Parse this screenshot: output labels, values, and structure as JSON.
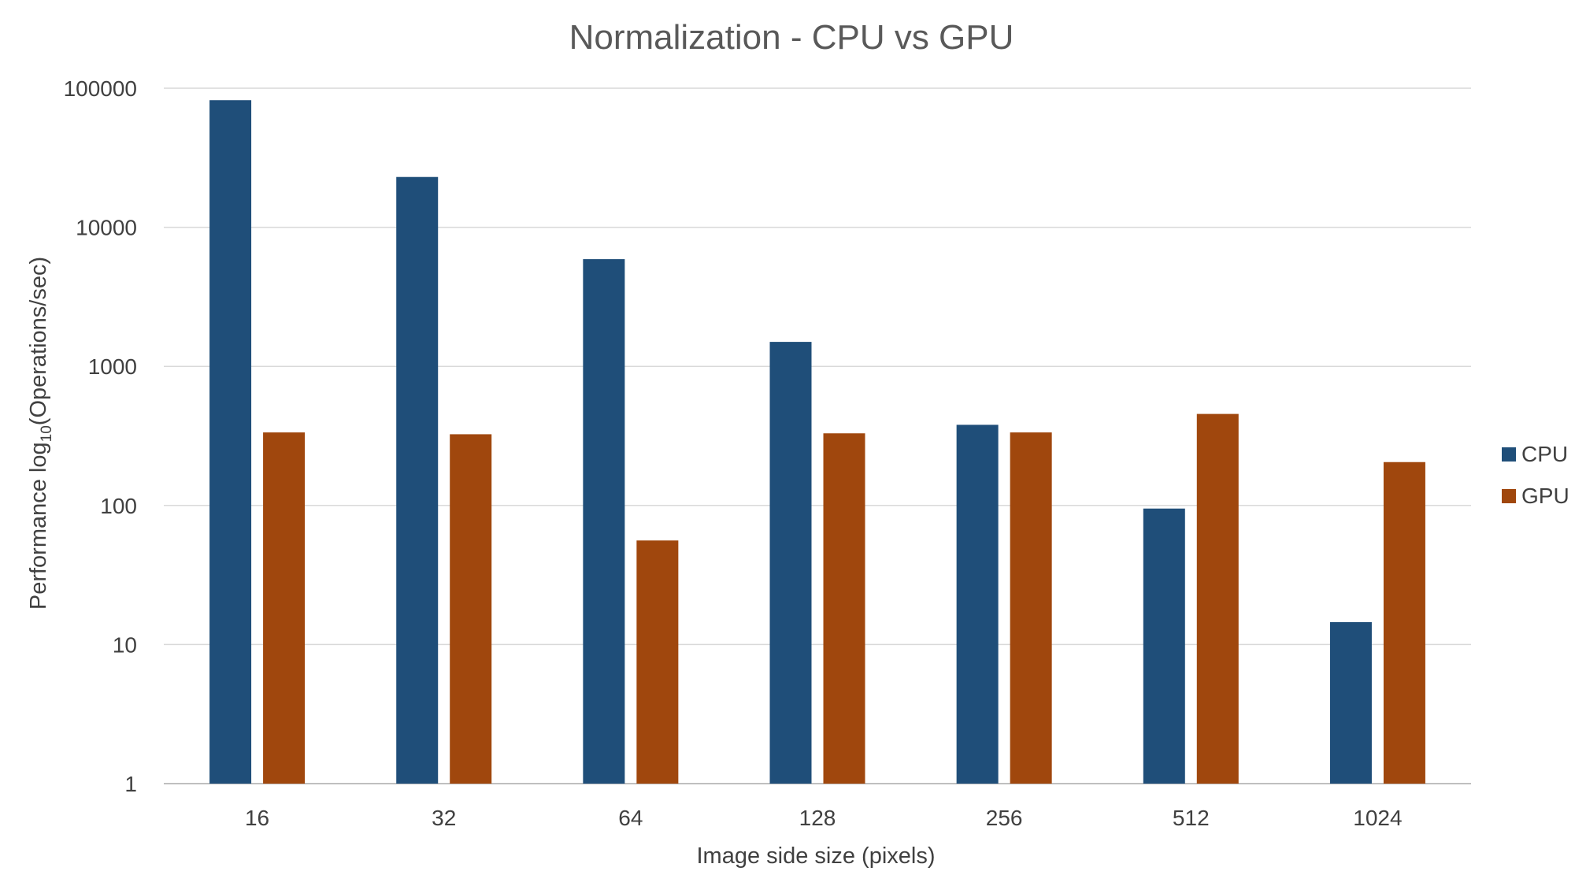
{
  "chart_data": {
    "type": "bar",
    "title": "Normalization  - CPU vs GPU",
    "xlabel": "Image side size (pixels)",
    "ylabel_main": "Performance log",
    "ylabel_sub": "10",
    "ylabel_tail": "(Operations/sec)",
    "y_scale": "log",
    "ylim": [
      1,
      100000
    ],
    "y_ticks": [
      "1",
      "10",
      "100",
      "1000",
      "10000",
      "100000"
    ],
    "categories": [
      "16",
      "32",
      "64",
      "128",
      "256",
      "512",
      "1024"
    ],
    "series": [
      {
        "name": "CPU",
        "color": "#1f4e79",
        "values": [
          82000,
          23000,
          5900,
          1500,
          380,
          95,
          14.5
        ]
      },
      {
        "name": "GPU",
        "color": "#a0470d",
        "values": [
          335,
          325,
          56,
          330,
          335,
          455,
          205
        ]
      }
    ],
    "grid": true,
    "legend_position": "right"
  }
}
